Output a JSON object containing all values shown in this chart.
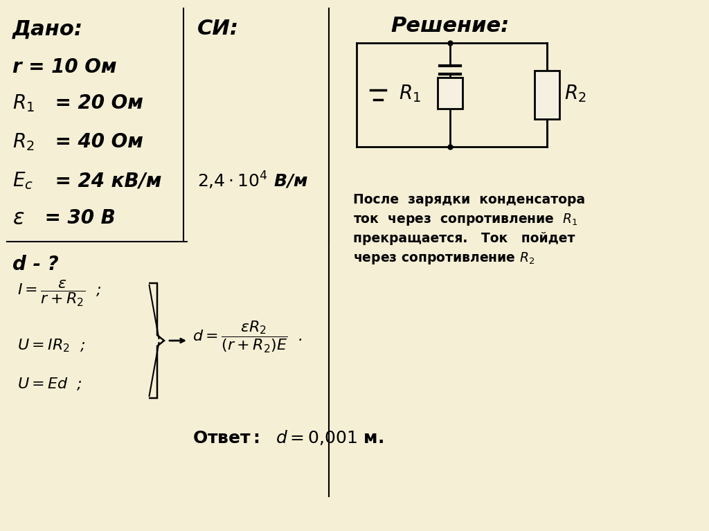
{
  "bg_color": "#f5efd5",
  "title_color": "#000000",
  "text_color": "#000000",
  "fig_width": 10.24,
  "fig_height": 7.67,
  "dpi": 100,
  "dado_title": "Дано:",
  "si_title": "СИ:",
  "reshenie_title": "Решение:",
  "given_items": [
    [
      "r",
      " = 10 Ом"
    ],
    [
      "R",
      "₁ = 20 Ом"
    ],
    [
      "R",
      "₂ = 40 Ом"
    ],
    [
      "E",
      "c = 24 кВ/м"
    ],
    [
      "ε",
      " = 30 В"
    ]
  ],
  "si_items": [
    "2,4 · 10⁴ В/м"
  ],
  "find_item": "d - ?",
  "explanation": "После  зарядки  конденсатора\nток  через  сопротивление  R₁\nпрекращается.   Ток   пойдет\nчерез сопротивление R₂",
  "answer_label": "Ответ:",
  "answer_formula": "d = 0,001 м."
}
